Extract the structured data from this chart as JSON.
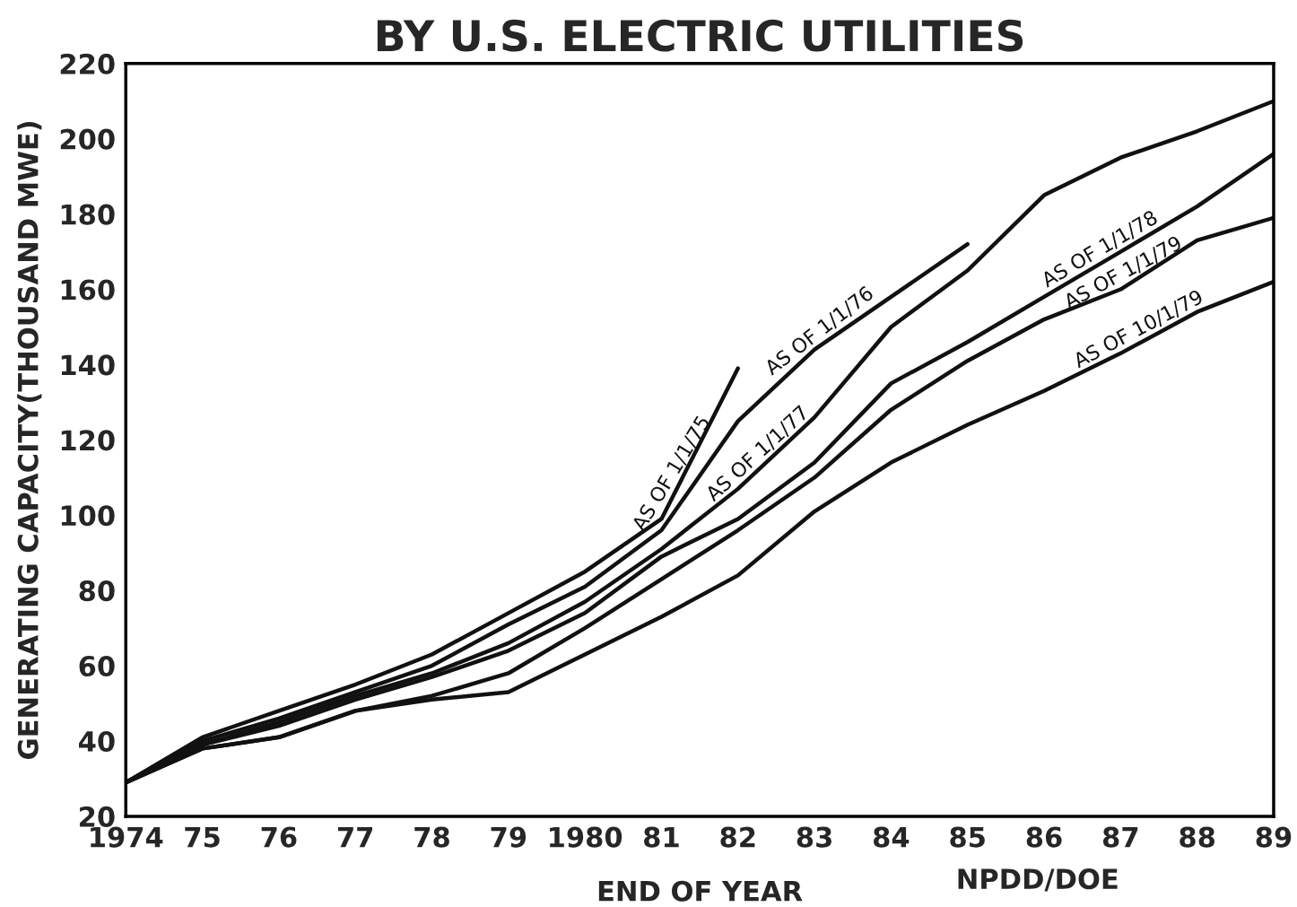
{
  "chart_data": {
    "type": "line",
    "title": "BY U.S. ELECTRIC UTILITIES",
    "xlabel": "END OF YEAR",
    "ylabel": "GENERATING CAPACITY(THOUSAND MWE)",
    "annotations": [
      "NPDD/DOE"
    ],
    "xlim": [
      1974,
      1989
    ],
    "ylim": [
      20,
      220
    ],
    "xticks": [
      {
        "value": 1974,
        "label": "1974"
      },
      {
        "value": 1975,
        "label": "75"
      },
      {
        "value": 1976,
        "label": "76"
      },
      {
        "value": 1977,
        "label": "77"
      },
      {
        "value": 1978,
        "label": "78"
      },
      {
        "value": 1979,
        "label": "79"
      },
      {
        "value": 1980,
        "label": "1980"
      },
      {
        "value": 1981,
        "label": "81"
      },
      {
        "value": 1982,
        "label": "82"
      },
      {
        "value": 1983,
        "label": "83"
      },
      {
        "value": 1984,
        "label": "84"
      },
      {
        "value": 1985,
        "label": "85"
      },
      {
        "value": 1986,
        "label": "86"
      },
      {
        "value": 1987,
        "label": "87"
      },
      {
        "value": 1988,
        "label": "88"
      },
      {
        "value": 1989,
        "label": "89"
      }
    ],
    "yticks": [
      20,
      40,
      60,
      80,
      100,
      120,
      140,
      160,
      180,
      200,
      220
    ],
    "grid": false,
    "legend": false,
    "marker": "none",
    "line_style": "solid",
    "series": [
      {
        "name": "AS OF 1/1/75",
        "color": "#111111",
        "x": [
          1974,
          1975,
          1976,
          1977,
          1978,
          1979,
          1980,
          1981,
          1982
        ],
        "values": [
          29,
          41,
          48,
          55,
          63,
          74,
          85,
          99,
          139
        ]
      },
      {
        "name": "AS OF 1/1/76",
        "color": "#111111",
        "x": [
          1974,
          1975,
          1976,
          1977,
          1978,
          1979,
          1980,
          1981,
          1982,
          1983,
          1984,
          1985
        ],
        "values": [
          29,
          40,
          46,
          53,
          60,
          71,
          81,
          96,
          125,
          144,
          158,
          172
        ]
      },
      {
        "name": "AS OF 1/1/77",
        "color": "#111111",
        "x": [
          1974,
          1975,
          1976,
          1977,
          1978,
          1979,
          1980,
          1981,
          1982,
          1983,
          1984,
          1985,
          1986,
          1987,
          1988,
          1989
        ],
        "values": [
          29,
          39,
          45,
          52,
          58,
          66,
          77,
          91,
          107,
          126,
          150,
          165,
          185,
          195,
          202,
          210
        ]
      },
      {
        "name": "AS OF 1/1/78",
        "color": "#111111",
        "x": [
          1974,
          1975,
          1976,
          1977,
          1978,
          1979,
          1980,
          1981,
          1982,
          1983,
          1984,
          1985,
          1986,
          1987,
          1988,
          1989
        ],
        "values": [
          29,
          39,
          44,
          51,
          57,
          64,
          74,
          89,
          99,
          114,
          135,
          146,
          158,
          170,
          182,
          196
        ]
      },
      {
        "name": "AS OF 1/1/79",
        "color": "#111111",
        "x": [
          1974,
          1975,
          1976,
          1977,
          1978,
          1979,
          1980,
          1981,
          1982,
          1983,
          1984,
          1985,
          1986,
          1987,
          1988,
          1989
        ],
        "values": [
          29,
          38,
          41,
          48,
          52,
          58,
          70,
          83,
          96,
          110,
          128,
          141,
          152,
          160,
          173,
          179
        ]
      },
      {
        "name": "AS OF 10/1/79",
        "color": "#111111",
        "x": [
          1974,
          1975,
          1976,
          1977,
          1978,
          1979,
          1980,
          1981,
          1982,
          1983,
          1984,
          1985,
          1986,
          1987,
          1988,
          1989
        ],
        "values": [
          29,
          38,
          41,
          48,
          51,
          53,
          63,
          73,
          84,
          101,
          114,
          124,
          133,
          143,
          154,
          162
        ]
      }
    ]
  }
}
